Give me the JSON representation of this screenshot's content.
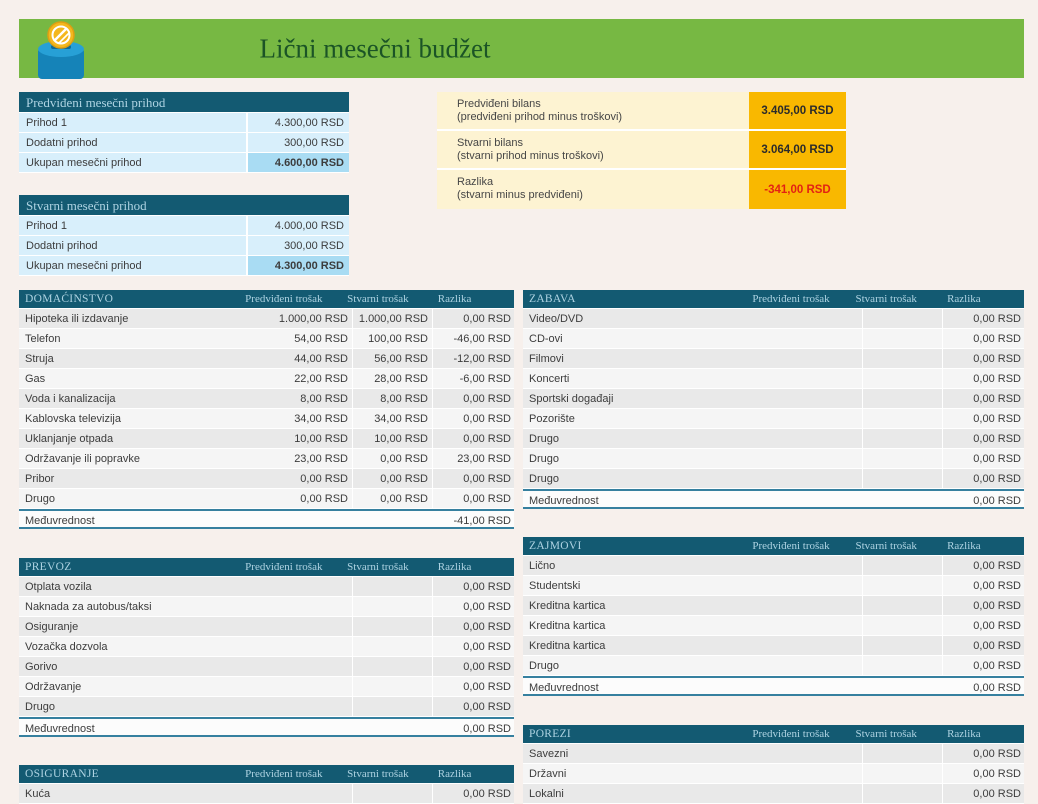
{
  "page": {
    "title": "Lični mesečni budžet"
  },
  "colors": {
    "banner_green": "#77b843",
    "title_green": "#1b5426",
    "header_teal": "#135a72",
    "header_text": "#aed3e2",
    "income_row_blue": "#d8effb",
    "income_total_blue": "#a9dcf3",
    "summary_cream": "#fdf3d2",
    "summary_amber": "#f9b800",
    "negative_red": "#e32213"
  },
  "icons": {
    "bank": "piggy-bank-coin-icon"
  },
  "income_tables": [
    {
      "title": "Predviđeni mesečni prihod",
      "rows": [
        {
          "label": "Prihod 1",
          "value": "4.300,00 RSD"
        },
        {
          "label": "Dodatni prihod",
          "value": "300,00 RSD"
        }
      ],
      "total": {
        "label": "Ukupan mesečni prihod",
        "value": "4.600,00 RSD"
      }
    },
    {
      "title": "Stvarni mesečni prihod",
      "rows": [
        {
          "label": "Prihod 1",
          "value": "4.000,00 RSD"
        },
        {
          "label": "Dodatni prihod",
          "value": "300,00 RSD"
        }
      ],
      "total": {
        "label": "Ukupan mesečni prihod",
        "value": "4.300,00 RSD"
      }
    }
  ],
  "summary": {
    "rows": [
      {
        "label": "Predviđeni bilans",
        "sub": "(predviđeni prihod minus troškovi)",
        "value": "3.405,00 RSD",
        "negative": false
      },
      {
        "label": "Stvarni bilans",
        "sub": "(stvarni prihod minus troškovi)",
        "value": "3.064,00 RSD",
        "negative": false
      },
      {
        "label": "Razlika",
        "sub": "(stvarni minus predviđeni)",
        "value": "-341,00 RSD",
        "negative": true
      }
    ]
  },
  "expense_columns": [
    "Predviđeni trošak",
    "Stvarni trošak",
    "Razlika"
  ],
  "expense_tables": [
    {
      "title": "DOMAĆINSTVO",
      "rows": [
        {
          "label": "Hipoteka ili izdavanje",
          "planned": "1.000,00 RSD",
          "actual": "1.000,00 RSD",
          "diff": "0,00 RSD"
        },
        {
          "label": "Telefon",
          "planned": "54,00 RSD",
          "actual": "100,00 RSD",
          "diff": "-46,00 RSD"
        },
        {
          "label": "Struja",
          "planned": "44,00 RSD",
          "actual": "56,00 RSD",
          "diff": "-12,00 RSD"
        },
        {
          "label": "Gas",
          "planned": "22,00 RSD",
          "actual": "28,00 RSD",
          "diff": "-6,00 RSD"
        },
        {
          "label": "Voda i kanalizacija",
          "planned": "8,00 RSD",
          "actual": "8,00 RSD",
          "diff": "0,00 RSD"
        },
        {
          "label": "Kablovska televizija",
          "planned": "34,00 RSD",
          "actual": "34,00 RSD",
          "diff": "0,00 RSD"
        },
        {
          "label": "Uklanjanje otpada",
          "planned": "10,00 RSD",
          "actual": "10,00 RSD",
          "diff": "0,00 RSD"
        },
        {
          "label": "Održavanje ili popravke",
          "planned": "23,00 RSD",
          "actual": "0,00 RSD",
          "diff": "23,00 RSD"
        },
        {
          "label": "Pribor",
          "planned": "0,00 RSD",
          "actual": "0,00 RSD",
          "diff": "0,00 RSD"
        },
        {
          "label": "Drugo",
          "planned": "0,00 RSD",
          "actual": "0,00 RSD",
          "diff": "0,00 RSD"
        }
      ],
      "subtotal": {
        "label": "Međuvrednost",
        "value": "-41,00 RSD"
      }
    },
    {
      "title": "PREVOZ",
      "rows": [
        {
          "label": "Otplata vozila",
          "planned": "",
          "actual": "",
          "diff": "0,00 RSD"
        },
        {
          "label": "Naknada za autobus/taksi",
          "planned": "",
          "actual": "",
          "diff": "0,00 RSD"
        },
        {
          "label": "Osiguranje",
          "planned": "",
          "actual": "",
          "diff": "0,00 RSD"
        },
        {
          "label": "Vozačka dozvola",
          "planned": "",
          "actual": "",
          "diff": "0,00 RSD"
        },
        {
          "label": "Gorivo",
          "planned": "",
          "actual": "",
          "diff": "0,00 RSD"
        },
        {
          "label": "Održavanje",
          "planned": "",
          "actual": "",
          "diff": "0,00 RSD"
        },
        {
          "label": "Drugo",
          "planned": "",
          "actual": "",
          "diff": "0,00 RSD"
        }
      ],
      "subtotal": {
        "label": "Međuvrednost",
        "value": "0,00 RSD"
      }
    },
    {
      "title": "OSIGURANJE",
      "rows": [
        {
          "label": "Kuća",
          "planned": "",
          "actual": "",
          "diff": "0,00 RSD"
        }
      ],
      "subtotal": null
    },
    {
      "title": "ZABAVA",
      "rows": [
        {
          "label": "Video/DVD",
          "planned": "",
          "actual": "",
          "diff": "0,00 RSD"
        },
        {
          "label": "CD-ovi",
          "planned": "",
          "actual": "",
          "diff": "0,00 RSD"
        },
        {
          "label": "Filmovi",
          "planned": "",
          "actual": "",
          "diff": "0,00 RSD"
        },
        {
          "label": "Koncerti",
          "planned": "",
          "actual": "",
          "diff": "0,00 RSD"
        },
        {
          "label": "Sportski događaji",
          "planned": "",
          "actual": "",
          "diff": "0,00 RSD"
        },
        {
          "label": "Pozorište",
          "planned": "",
          "actual": "",
          "diff": "0,00 RSD"
        },
        {
          "label": "Drugo",
          "planned": "",
          "actual": "",
          "diff": "0,00 RSD"
        },
        {
          "label": "Drugo",
          "planned": "",
          "actual": "",
          "diff": "0,00 RSD"
        },
        {
          "label": "Drugo",
          "planned": "",
          "actual": "",
          "diff": "0,00 RSD"
        }
      ],
      "subtotal": {
        "label": "Međuvrednost",
        "value": "0,00 RSD"
      }
    },
    {
      "title": "ZAJMOVI",
      "rows": [
        {
          "label": "Lično",
          "planned": "",
          "actual": "",
          "diff": "0,00 RSD"
        },
        {
          "label": "Studentski",
          "planned": "",
          "actual": "",
          "diff": "0,00 RSD"
        },
        {
          "label": "Kreditna kartica",
          "planned": "",
          "actual": "",
          "diff": "0,00 RSD"
        },
        {
          "label": "Kreditna kartica",
          "planned": "",
          "actual": "",
          "diff": "0,00 RSD"
        },
        {
          "label": "Kreditna kartica",
          "planned": "",
          "actual": "",
          "diff": "0,00 RSD"
        },
        {
          "label": "Drugo",
          "planned": "",
          "actual": "",
          "diff": "0,00 RSD"
        }
      ],
      "subtotal": {
        "label": "Međuvrednost",
        "value": "0,00 RSD"
      }
    },
    {
      "title": "POREZI",
      "rows": [
        {
          "label": "Savezni",
          "planned": "",
          "actual": "",
          "diff": "0,00 RSD"
        },
        {
          "label": "Državni",
          "planned": "",
          "actual": "",
          "diff": "0,00 RSD"
        },
        {
          "label": "Lokalni",
          "planned": "",
          "actual": "",
          "diff": "0,00 RSD"
        }
      ],
      "subtotal": null
    }
  ]
}
